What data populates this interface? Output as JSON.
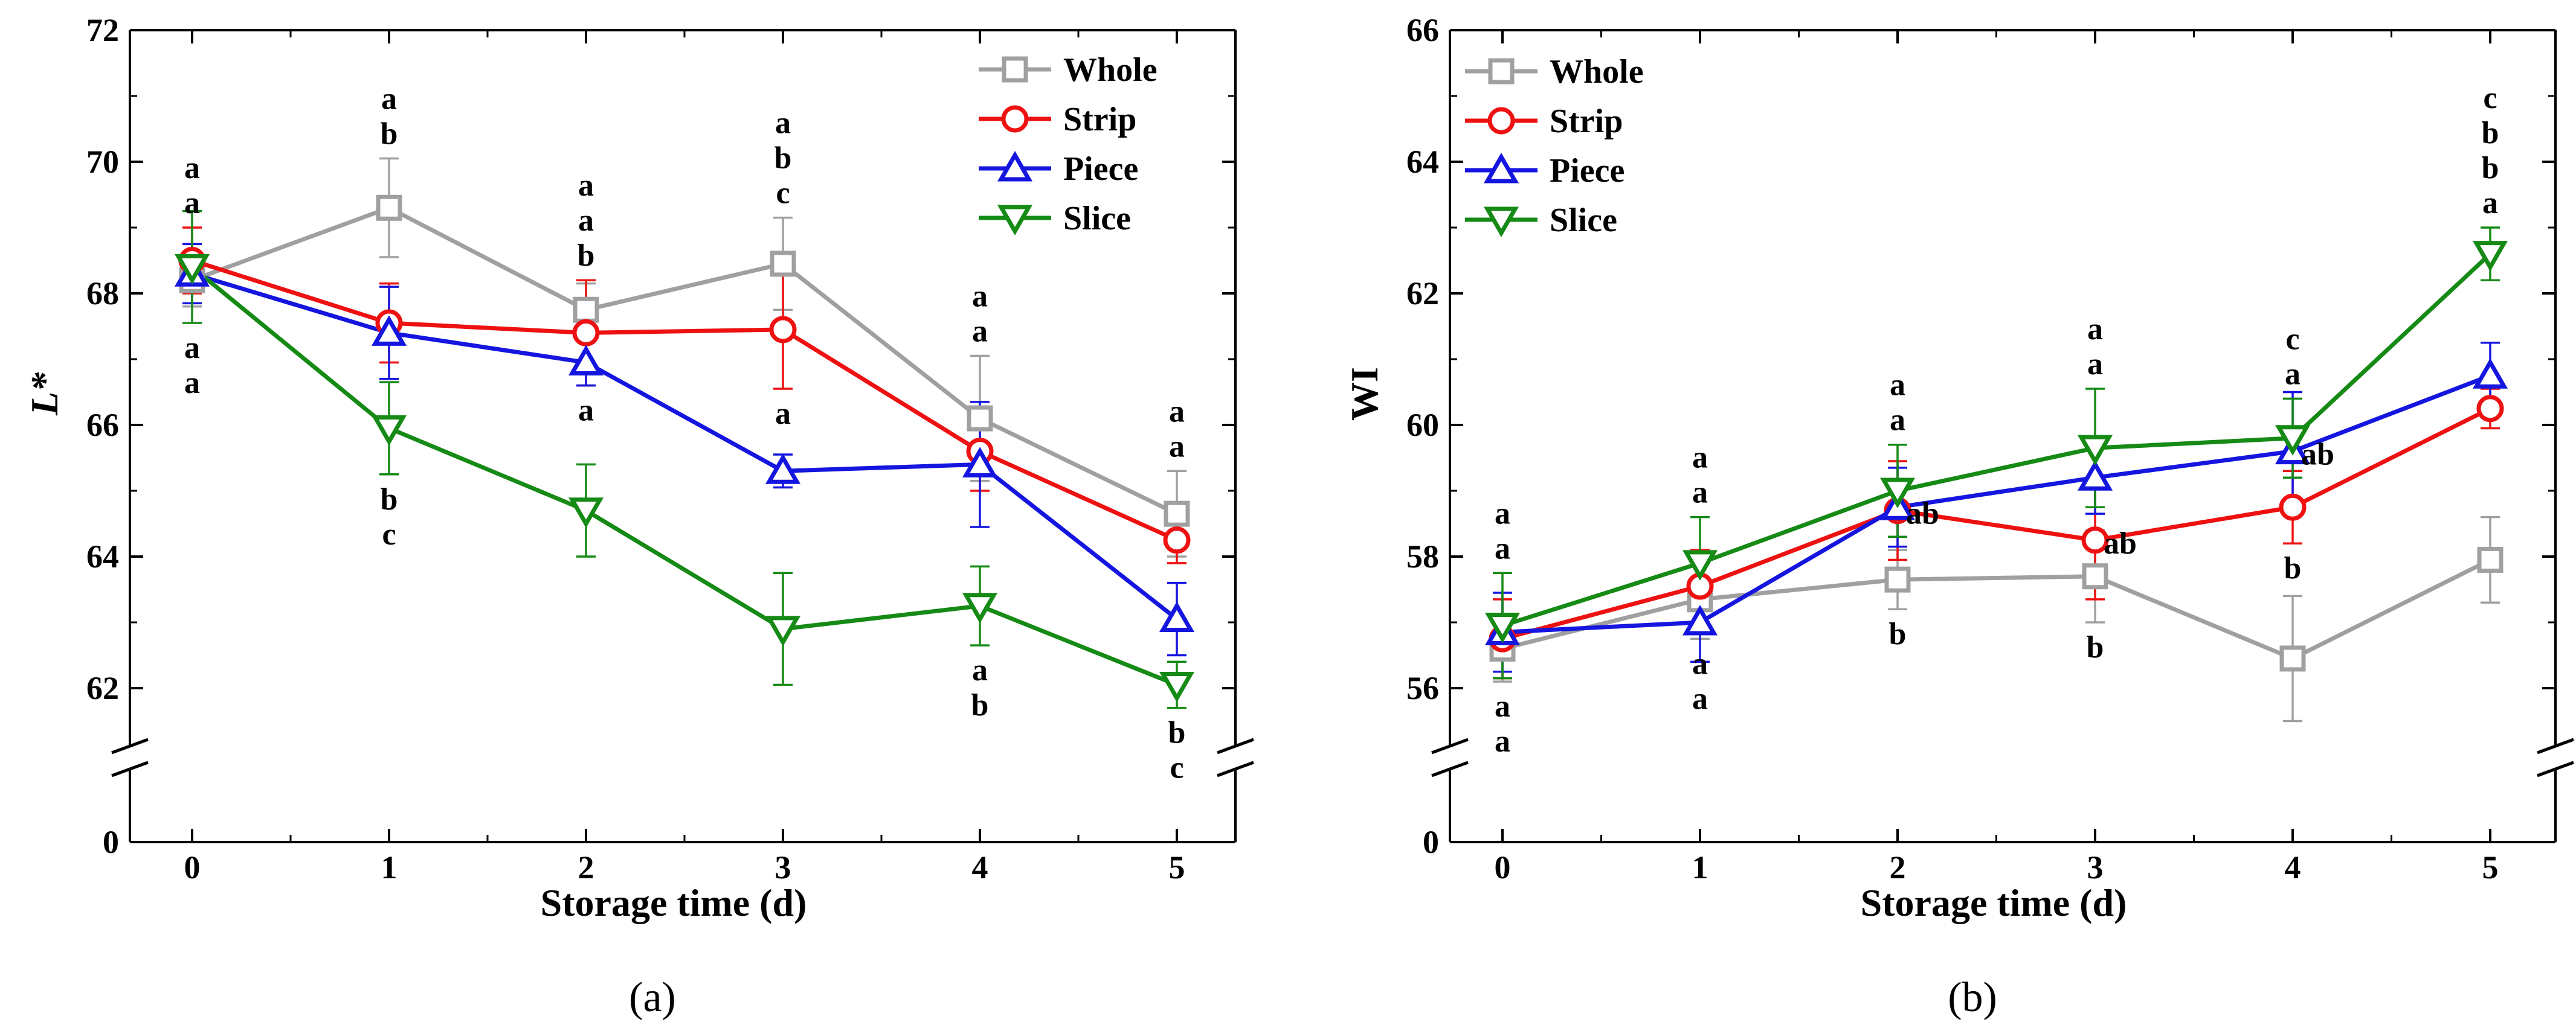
{
  "chart_data": [
    {
      "type": "line",
      "panel_label": "(a)",
      "ylabel": "L*",
      "xlabel": "Storage time (d)",
      "x": [
        0,
        1,
        2,
        3,
        4,
        5
      ],
      "ylim": [
        62,
        72
      ],
      "yticks": [
        "0",
        "62",
        "64",
        "66",
        "68",
        "70",
        "72"
      ],
      "axis_break": true,
      "legend_position": "top-right",
      "series": [
        {
          "name": "Whole",
          "color": "#a0a0a0",
          "marker": "square",
          "values": [
            68.2,
            69.3,
            67.75,
            68.45,
            66.1,
            64.65
          ],
          "errors": [
            0.4,
            0.75,
            0.4,
            0.7,
            0.95,
            0.65
          ],
          "sig": [
            {
              "text": "a",
              "dy": -1
            },
            {
              "text": "a",
              "dy": -1
            },
            {
              "text": "a",
              "dy": -1
            },
            {
              "text": "a",
              "dy": -1
            },
            {
              "text": "a",
              "dy": -1
            },
            {
              "text": "a",
              "dy": -1
            }
          ]
        },
        {
          "name": "Strip",
          "color": "#ee1111",
          "marker": "circle",
          "values": [
            68.5,
            67.55,
            67.4,
            67.45,
            65.6,
            64.25
          ],
          "errors": [
            0.5,
            0.6,
            0.8,
            0.9,
            0.6,
            0.35
          ],
          "sig": [
            {
              "text": "a",
              "dy": -2
            },
            {
              "text": "b",
              "dy": -1
            },
            {
              "text": "a",
              "dy": -1
            },
            {
              "text": "a",
              "dy": 1
            },
            {
              "text": "a",
              "dy": -1
            },
            {
              "text": "a",
              "dy": -1
            }
          ]
        },
        {
          "name": "Piece",
          "color": "#1515e0",
          "marker": "triangle-up",
          "values": [
            68.3,
            67.4,
            66.95,
            65.3,
            65.4,
            63.05
          ],
          "errors": [
            0.45,
            0.7,
            0.35,
            0.25,
            0.95,
            0.55
          ],
          "sig": [
            {
              "text": "a",
              "dy": 1
            },
            {
              "text": "b",
              "dy": 1
            },
            {
              "text": "a",
              "dy": 1
            },
            {
              "text": "b",
              "dy": -1
            },
            {
              "text": "a",
              "dy": 1
            },
            {
              "text": "b",
              "dy": 1
            }
          ]
        },
        {
          "name": "Slice",
          "color": "#158a15",
          "marker": "triangle-down",
          "values": [
            68.4,
            65.95,
            64.7,
            62.9,
            63.25,
            62.05
          ],
          "errors": [
            0.85,
            0.7,
            0.7,
            0.85,
            0.6,
            0.35
          ],
          "sig": [
            {
              "text": "a",
              "dy": 1
            },
            {
              "text": "c",
              "dy": 1
            },
            {
              "text": "b",
              "dy": -1
            },
            {
              "text": "c",
              "dy": -1
            },
            {
              "text": "b",
              "dy": 1
            },
            {
              "text": "c",
              "dy": 1
            }
          ]
        }
      ]
    },
    {
      "type": "line",
      "panel_label": "(b)",
      "ylabel": "WI",
      "xlabel": "Storage time (d)",
      "x": [
        0,
        1,
        2,
        3,
        4,
        5
      ],
      "ylim": [
        56,
        66
      ],
      "yticks": [
        "0",
        "56",
        "58",
        "60",
        "62",
        "64",
        "66"
      ],
      "axis_break": true,
      "legend_position": "top-left",
      "series": [
        {
          "name": "Whole",
          "color": "#a0a0a0",
          "marker": "square",
          "values": [
            56.6,
            57.35,
            57.65,
            57.7,
            56.45,
            57.95
          ],
          "errors": [
            0.5,
            0.6,
            0.45,
            0.7,
            0.95,
            0.65
          ],
          "sig": [
            {
              "text": "a",
              "dy": 1
            },
            {
              "text": "a",
              "dy": 1
            },
            {
              "text": "b",
              "dy": 1
            },
            {
              "text": "b",
              "dy": 1
            },
            {
              "text": "c",
              "dy": -1
            },
            {
              "text": "c",
              "dy": -1
            }
          ]
        },
        {
          "name": "Strip",
          "color": "#ee1111",
          "marker": "circle",
          "values": [
            56.75,
            57.55,
            58.7,
            58.25,
            58.75,
            60.25
          ],
          "errors": [
            0.6,
            0.55,
            0.75,
            0.9,
            0.55,
            0.3
          ],
          "sig": [
            {
              "text": "a",
              "dy": 1
            },
            {
              "text": "a",
              "dy": 1
            },
            {
              "text": "ab",
              "dy": 0
            },
            {
              "text": "ab",
              "dy": 0
            },
            {
              "text": "b",
              "dy": 1
            },
            {
              "text": "b",
              "dy": -1
            }
          ]
        },
        {
          "name": "Piece",
          "color": "#1515e0",
          "marker": "triangle-up",
          "values": [
            56.85,
            57.0,
            58.75,
            59.2,
            59.6,
            60.75
          ],
          "errors": [
            0.6,
            0.6,
            0.6,
            0.55,
            0.9,
            0.5
          ],
          "sig": [
            {
              "text": "a",
              "dy": -1
            },
            {
              "text": "a",
              "dy": -1
            },
            {
              "text": "a",
              "dy": -1
            },
            {
              "text": "a",
              "dy": -1
            },
            {
              "text": "ab",
              "dy": 0
            },
            {
              "text": "b",
              "dy": -1
            }
          ]
        },
        {
          "name": "Slice",
          "color": "#158a15",
          "marker": "triangle-down",
          "values": [
            56.95,
            57.9,
            59.0,
            59.65,
            59.8,
            62.6
          ],
          "errors": [
            0.8,
            0.7,
            0.7,
            0.9,
            0.6,
            0.4
          ],
          "sig": [
            {
              "text": "a",
              "dy": -1
            },
            {
              "text": "a",
              "dy": -1
            },
            {
              "text": "a",
              "dy": -1
            },
            {
              "text": "a",
              "dy": -1
            },
            {
              "text": "a",
              "dy": -1
            },
            {
              "text": "a",
              "dy": -1
            }
          ]
        }
      ]
    }
  ]
}
